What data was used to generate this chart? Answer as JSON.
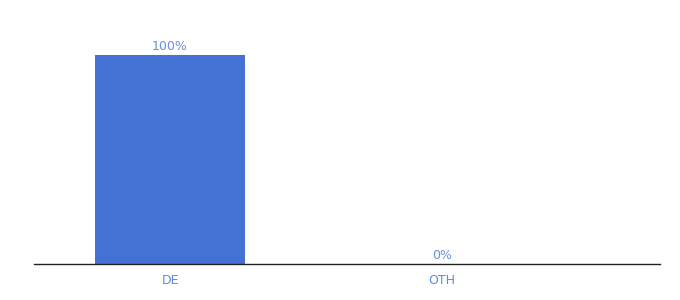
{
  "categories": [
    "DE",
    "OTH"
  ],
  "values": [
    100,
    0
  ],
  "bar_color": "#4472d4",
  "label_color": "#6b8fd6",
  "axis_label_color": "#5b8dd9",
  "background_color": "#ffffff",
  "ylim": [
    0,
    115
  ],
  "bar_width": 0.55,
  "figsize": [
    6.8,
    3.0
  ],
  "dpi": 100,
  "value_labels": [
    "100%",
    "0%"
  ],
  "font_size_labels": 9,
  "font_size_ticks": 9
}
